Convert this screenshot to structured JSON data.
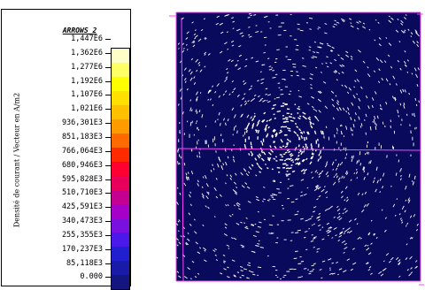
{
  "legend": {
    "title": "ARROWS_2",
    "axis_label": "Densité de courant / Vecteur en A/m2",
    "ticks": [
      "1,447E6",
      "1,362E6",
      "1,277E6",
      "1,192E6",
      "1,107E6",
      "1,021E6",
      "936,301E3",
      "851,183E3",
      "766,064E3",
      "680,946E3",
      "595,828E3",
      "510,710E3",
      "425,591E3",
      "340,473E3",
      "255,355E3",
      "170,237E3",
      "85,118E3",
      "0.000"
    ],
    "colors": [
      "#ffffc8",
      "#ffff66",
      "#ffff00",
      "#ffe000",
      "#ffc000",
      "#ff9a00",
      "#ff6a00",
      "#ff2a00",
      "#ff0030",
      "#e8005a",
      "#c40090",
      "#a400c8",
      "#7a10e0",
      "#4a18e8",
      "#2020d0",
      "#1a1aa8",
      "#151580"
    ]
  },
  "plot": {
    "background": "#0a0a5c",
    "grid_line_color": "#ff44ff",
    "vector_color": "#ffffff"
  }
}
